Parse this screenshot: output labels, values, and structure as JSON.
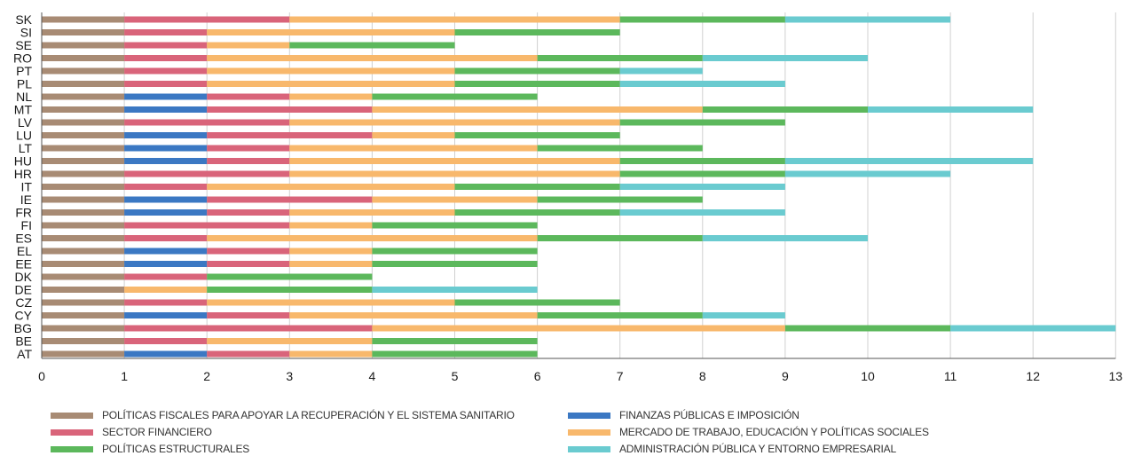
{
  "chart_data": {
    "type": "bar",
    "orientation": "horizontal",
    "stacked": true,
    "categories": [
      "SK",
      "SI",
      "SE",
      "RO",
      "PT",
      "PL",
      "NL",
      "MT",
      "LV",
      "LU",
      "LT",
      "HU",
      "HR",
      "IT",
      "IE",
      "FR",
      "FI",
      "ES",
      "EL",
      "EE",
      "DK",
      "DE",
      "CZ",
      "CY",
      "BG",
      "BE",
      "AT"
    ],
    "series": [
      {
        "name": "POLÍTICAS FISCALES PARA APOYAR LA RECUPERACIÓN Y EL SISTEMA SANITARIO",
        "color": "#a88b74",
        "values": [
          1,
          1,
          1,
          1,
          1,
          1,
          1,
          1,
          1,
          1,
          1,
          1,
          1,
          1,
          1,
          1,
          1,
          1,
          1,
          1,
          1,
          1,
          1,
          1,
          1,
          1,
          1
        ]
      },
      {
        "name": "FINANZAS PÚBLICAS E IMPOSICIÓN",
        "color": "#3b78c3",
        "values": [
          0,
          0,
          0,
          0,
          0,
          0,
          1,
          1,
          0,
          1,
          1,
          1,
          0,
          0,
          1,
          1,
          0,
          0,
          1,
          1,
          0,
          0,
          0,
          1,
          0,
          0,
          1
        ]
      },
      {
        "name": "SECTOR FINANCIERO",
        "color": "#d9647a",
        "values": [
          2,
          1,
          1,
          1,
          1,
          1,
          1,
          2,
          2,
          2,
          1,
          1,
          2,
          1,
          2,
          1,
          2,
          1,
          1,
          1,
          1,
          0,
          1,
          1,
          3,
          1,
          1
        ]
      },
      {
        "name": "MERCADO DE TRABAJO, EDUCACIÓN Y POLÍTICAS SOCIALES",
        "color": "#f8b86c",
        "values": [
          4,
          3,
          1,
          4,
          3,
          3,
          1,
          4,
          4,
          1,
          3,
          4,
          4,
          3,
          2,
          2,
          1,
          4,
          1,
          1,
          0,
          1,
          3,
          3,
          5,
          2,
          1
        ]
      },
      {
        "name": "POLÍTICAS ESTRUCTURALES",
        "color": "#5cb85c",
        "values": [
          2,
          2,
          2,
          2,
          2,
          2,
          2,
          2,
          2,
          2,
          2,
          2,
          2,
          2,
          2,
          2,
          2,
          2,
          2,
          2,
          2,
          2,
          2,
          2,
          2,
          2,
          2
        ]
      },
      {
        "name": "ADMINISTRACIÓN PÚBLICA Y ENTORNO EMPRESARIAL",
        "color": "#6acbd0",
        "values": [
          2,
          0,
          0,
          2,
          1,
          2,
          0,
          2,
          0,
          0,
          0,
          3,
          2,
          2,
          0,
          2,
          0,
          2,
          0,
          0,
          0,
          2,
          0,
          1,
          2,
          0,
          0
        ]
      }
    ],
    "xlim": [
      0,
      13
    ],
    "xticks": [
      "0",
      "1",
      "2",
      "3",
      "4",
      "5",
      "6",
      "7",
      "8",
      "9",
      "10",
      "11",
      "12",
      "13"
    ],
    "grid": "vertical",
    "legend_position": "bottom"
  }
}
